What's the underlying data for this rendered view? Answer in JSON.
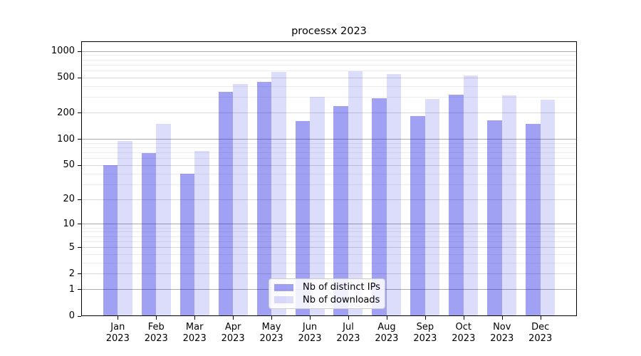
{
  "chart_data": {
    "type": "bar",
    "title": "processx 2023",
    "x_axis": {
      "tick_labels": [
        "Jan\n2023",
        "Feb\n2023",
        "Mar\n2023",
        "Apr\n2023",
        "May\n2023",
        "Jun\n2023",
        "Jul\n2023",
        "Aug\n2023",
        "Sep\n2023",
        "Oct\n2023",
        "Nov\n2023",
        "Dec\n2023"
      ]
    },
    "y_axis": {
      "scale": "log1p",
      "ticks": [
        0,
        1,
        2,
        5,
        10,
        20,
        50,
        100,
        200,
        500,
        1000
      ],
      "decade_ticks": [
        1,
        10,
        100,
        1000
      ],
      "max": 1300
    },
    "series": [
      {
        "name": "Nb of distinct IPs",
        "color": "rgba(20,20,225,0.40)",
        "values": [
          50,
          70,
          40,
          345,
          450,
          160,
          240,
          295,
          185,
          320,
          163,
          150
        ]
      },
      {
        "name": "Nb of downloads",
        "color": "rgba(20,20,225,0.15)",
        "values": [
          95,
          150,
          73,
          425,
          580,
          305,
          600,
          550,
          290,
          535,
          318,
          285
        ]
      }
    ],
    "legend": {
      "entries": [
        "Nb of distinct IPs",
        "Nb of downloads"
      ],
      "position": "bottom-center"
    },
    "grid": "on",
    "colors": {
      "grid_decade": "#ababab",
      "grid_labeled": "#d8d8d8",
      "grid_minor": "#ededed",
      "axis": "#000000",
      "legend_border": "#cccccc",
      "text": "#000000"
    }
  }
}
